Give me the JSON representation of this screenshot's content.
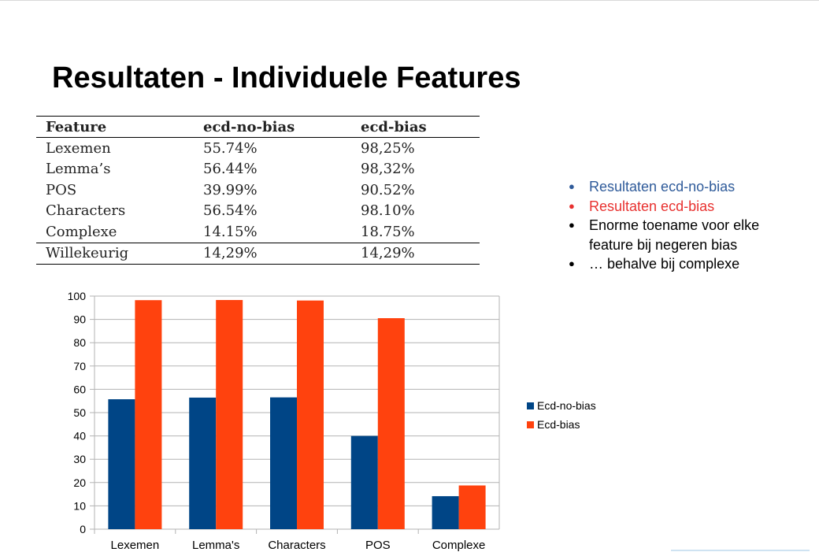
{
  "slide": {
    "title": "Resultaten - Individuele Features"
  },
  "table": {
    "headers": [
      "Feature",
      "ecd-no-bias",
      "ecd-bias"
    ],
    "rows": [
      [
        "Lexemen",
        "55.74%",
        "98,25%"
      ],
      [
        "Lemma’s",
        "56.44%",
        "98,32%"
      ],
      [
        "POS",
        "39.99%",
        "90.52%"
      ],
      [
        "Characters",
        "56.54%",
        "98.10%"
      ],
      [
        "Complexe",
        "14.15%",
        "18.75%"
      ]
    ],
    "footer_row": [
      "Willekeurig",
      "14,29%",
      "14,29%"
    ]
  },
  "bullets": [
    "Resultaten ecd-no-bias",
    "Resultaten ecd-bias",
    "Enorme toename voor elke feature bij negeren bias",
    "… behalve bij complexe"
  ],
  "colors": {
    "no_bias": "#004586",
    "bias": "#ff420e",
    "bullet_blue": "#2f5b9a",
    "bullet_red": "#e8312f"
  },
  "chart_data": {
    "type": "bar",
    "categories": [
      "Lexemen",
      "Lemma's",
      "Characters",
      "POS",
      "Complexe"
    ],
    "series": [
      {
        "name": "Ecd-no-bias",
        "values": [
          55.74,
          56.44,
          56.54,
          39.99,
          14.15
        ]
      },
      {
        "name": "Ecd-bias",
        "values": [
          98.25,
          98.32,
          98.1,
          90.52,
          18.75
        ]
      }
    ],
    "ylim": [
      0,
      100
    ],
    "yticks": [
      "0",
      "10",
      "20",
      "30",
      "40",
      "50",
      "60",
      "70",
      "80",
      "90",
      "100"
    ],
    "grid": true,
    "legend": "right"
  }
}
